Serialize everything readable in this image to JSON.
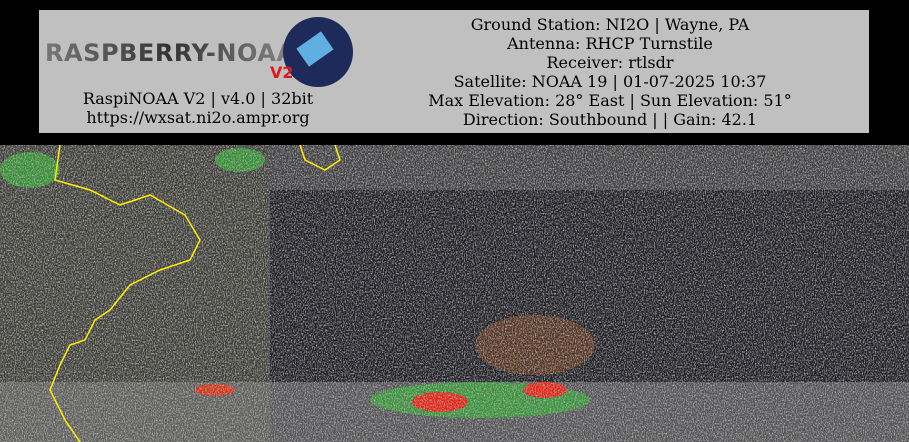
{
  "header": {
    "logo": {
      "title": "RASPBERRY-NOAA",
      "version": "V2"
    },
    "left_lines": [
      "RaspiNOAA V2 | v4.0 | 32bit",
      "https://wxsat.ni2o.ampr.org"
    ],
    "right_lines": [
      "Ground Station: NI2O | Wayne, PA",
      "Antenna: RHCP Turnstile",
      "Receiver: rtlsdr",
      "Satellite: NOAA 19 | 01-07-2025 10:37",
      "Max Elevation: 28° East | Sun Elevation: 51°",
      "Direction: Southbound | | Gain: 42.1"
    ]
  }
}
